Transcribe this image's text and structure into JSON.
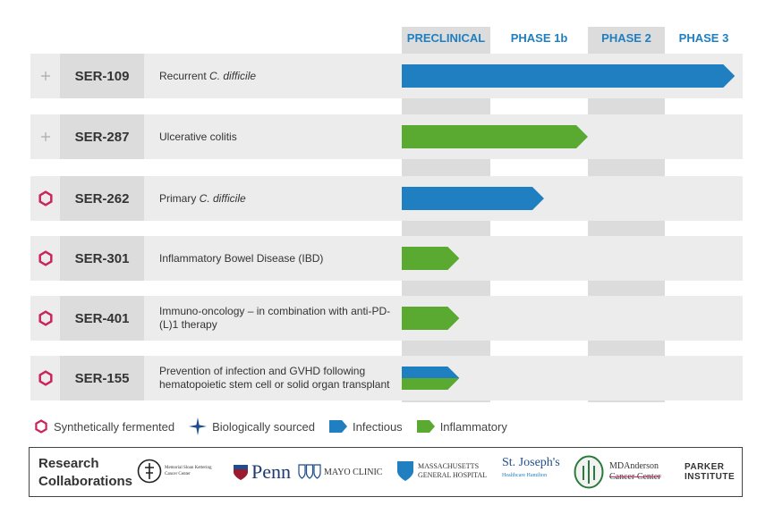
{
  "phases": [
    "PRECLINICAL",
    "PHASE 1b",
    "PHASE 2",
    "PHASE 3"
  ],
  "colors": {
    "infectious": "#1f7fc1",
    "inflammatory": "#5aaa32",
    "synthetic": "#c8245e",
    "biological": "#1f4e8c",
    "header": "#1f7fc1"
  },
  "programs": [
    {
      "source": "plus",
      "code": "SER-109",
      "desc_plain": "Recurrent ",
      "desc_italic": "C. difficile",
      "type": "infectious",
      "progress": 3.9
    },
    {
      "source": "plus",
      "code": "SER-287",
      "desc_plain": "Ulcerative colitis",
      "desc_italic": "",
      "type": "inflammatory",
      "progress": 2.0
    },
    {
      "source": "synthetic",
      "code": "SER-262",
      "desc_plain": "Primary ",
      "desc_italic": "C. difficile",
      "type": "infectious",
      "progress": 1.55
    },
    {
      "source": "synthetic",
      "code": "SER-301",
      "desc_plain": "Inflammatory Bowel Disease (IBD)",
      "desc_italic": "",
      "type": "inflammatory",
      "progress": 0.65
    },
    {
      "source": "synthetic",
      "code": "SER-401",
      "desc_plain": "Immuno-oncology – in combination with anti-PD-(L)1 therapy",
      "desc_italic": "",
      "type": "inflammatory",
      "progress": 0.65
    },
    {
      "source": "synthetic",
      "code": "SER-155",
      "desc_plain": "Prevention of infection and GVHD following hematopoietic stem cell or solid organ transplant",
      "desc_italic": "",
      "type": "both",
      "progress": 0.65
    }
  ],
  "legend": {
    "synthetic": "Synthetically fermented",
    "biological": "Biologically sourced",
    "infectious": "Infectious",
    "inflammatory": "Inflammatory"
  },
  "collaborations": {
    "title_line1": "Research",
    "title_line2": "Collaborations",
    "mskcc": "Memorial Sloan Kettering Cancer Center",
    "penn": "Penn",
    "mayo": "MAYO CLINIC",
    "mgh_line1": "MASSACHUSETTS",
    "mgh_line2": "GENERAL HOSPITAL",
    "stjoseph_line1": "St. Joseph's",
    "stjoseph_line2": "Healthcare Hamilton",
    "mdanderson_line1": "MDAnderson",
    "mdanderson_line2": "Cancer Center",
    "parker_line1": "PARKER",
    "parker_line2": "INSTITUTE"
  }
}
